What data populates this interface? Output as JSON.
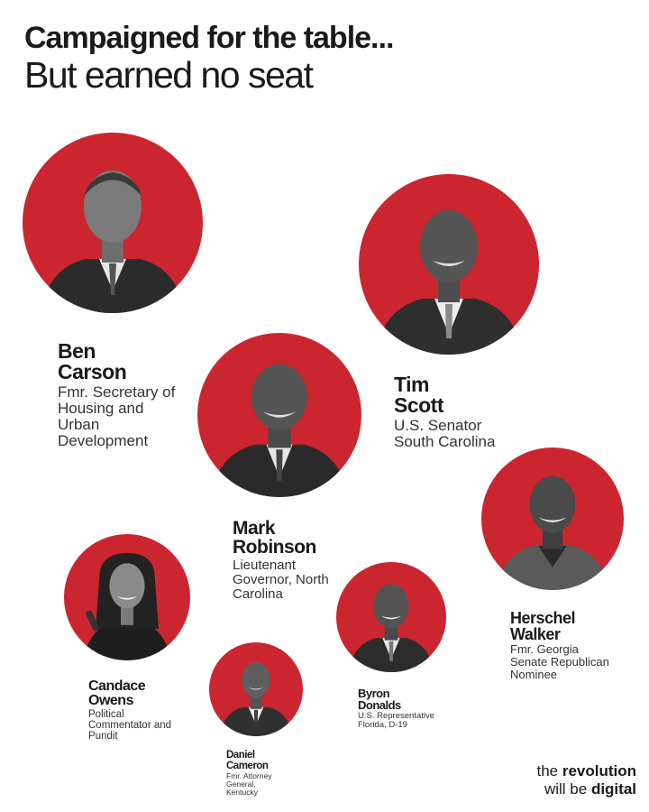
{
  "header": {
    "title_line1": "Campaigned for the table...",
    "title_line2": "But earned no seat"
  },
  "colors": {
    "accent": "#cb2630",
    "text": "#1a1a1a"
  },
  "people": [
    {
      "first": "Ben",
      "last": "Carson",
      "role": "Fmr. Secretary of\nHousing and\nUrban\nDevelopment"
    },
    {
      "first": "Tim",
      "last": "Scott",
      "role": "U.S. Senator\nSouth Carolina"
    },
    {
      "first": "Mark",
      "last": "Robinson",
      "role": "Lieutenant\nGovernor, North\nCarolina"
    },
    {
      "first": "Herschel",
      "last": "Walker",
      "role": "Fmr. Georgia\nSenate Republican\nNominee"
    },
    {
      "first": "Candace",
      "last": "Owens",
      "role": "Political\nCommentator and\nPundit"
    },
    {
      "first": "Byron",
      "last": "Donalds",
      "role": "U.S. Representative\nFlorida, D-19"
    },
    {
      "first": "Daniel",
      "last": "Cameron",
      "role": "Fmr. Attorney\nGeneral,\nKentucky"
    }
  ],
  "footer": {
    "part1": "the ",
    "part2": "revolution",
    "part3": "will be ",
    "part4": "digital"
  }
}
